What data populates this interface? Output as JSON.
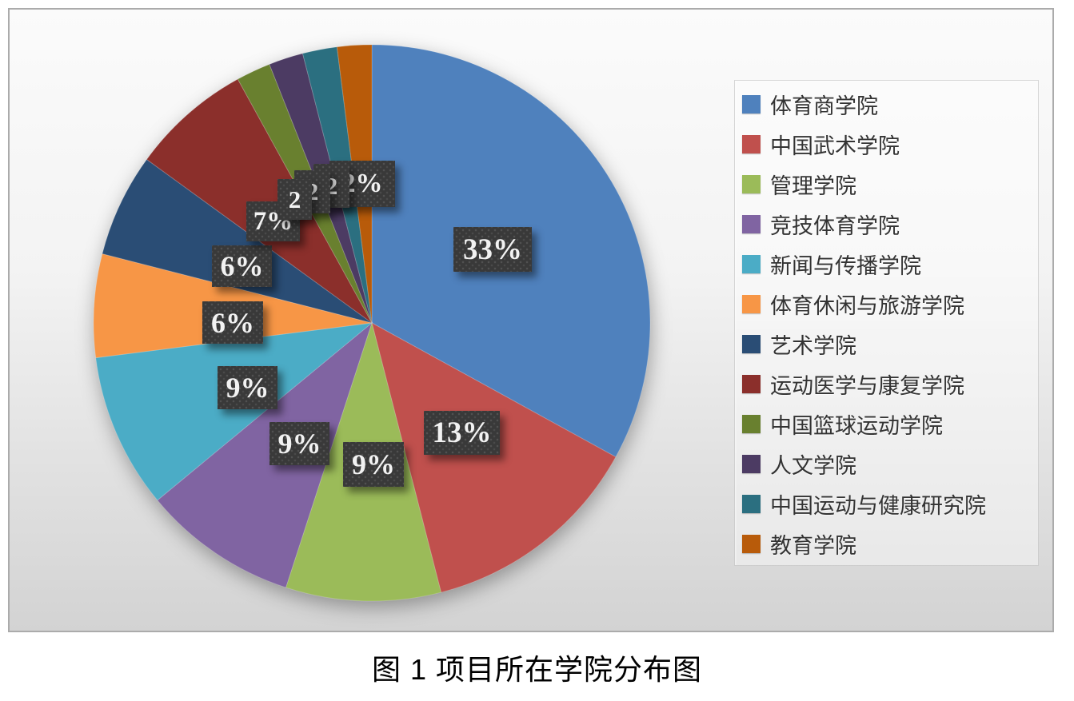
{
  "caption": "图 1 项目所在学院分布图",
  "chart_data": {
    "type": "pie",
    "title": "图 1 项目所在学院分布图",
    "legend_position": "right",
    "start_angle_deg": 0,
    "direction": "clockwise",
    "unit": "%",
    "categories": [
      "体育商学院",
      "中国武术学院",
      "管理学院",
      "竞技体育学院",
      "新闻与传播学院",
      "体育休闲与旅游学院",
      "艺术学院",
      "运动医学与康复学院",
      "中国篮球运动学院",
      "人文学院",
      "中国运动与健康研究院",
      "教育学院"
    ],
    "values": [
      33,
      13,
      9,
      9,
      9,
      6,
      6,
      7,
      2,
      2,
      2,
      2
    ],
    "data_labels": [
      "33%",
      "13%",
      "9%",
      "9%",
      "9%",
      "6%",
      "6%",
      "7%",
      "2",
      "2",
      "2",
      "2%"
    ],
    "colors": [
      "#4F81BD",
      "#C0504D",
      "#9BBB59",
      "#8064A2",
      "#4BACC6",
      "#F79646",
      "#2A4D75",
      "#8B2F2B",
      "#69802F",
      "#4C3B63",
      "#2B6F80",
      "#B85B0A"
    ],
    "label_box_style": {
      "background": "#393939",
      "text_color": "#F2F2F2"
    }
  }
}
